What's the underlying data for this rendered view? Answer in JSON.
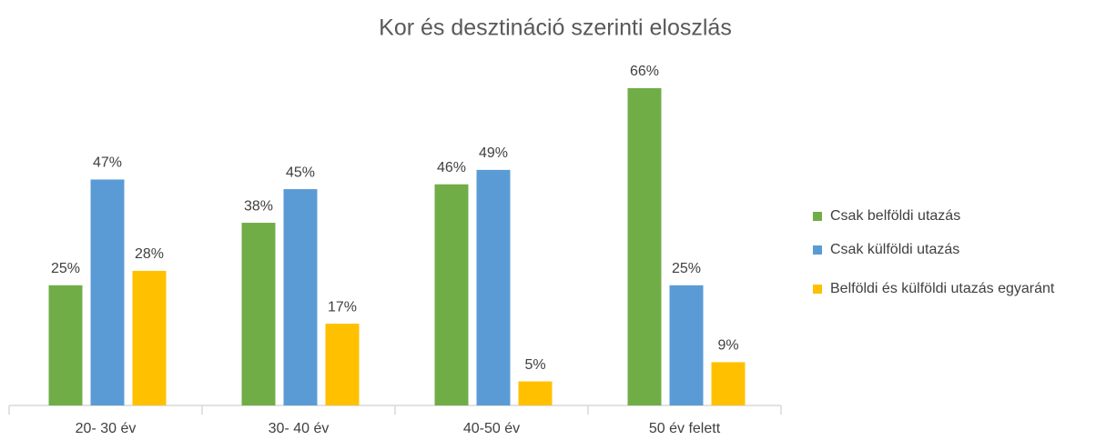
{
  "chart_data": {
    "type": "bar",
    "title": "Kor és desztináció szerinti eloszlás",
    "categories": [
      "20- 30 év",
      "30- 40 év",
      "40-50 év",
      "50 év felett"
    ],
    "series": [
      {
        "name": "Csak belföldi utazás",
        "color": "#70ad47",
        "values": [
          25,
          38,
          46,
          66
        ],
        "value_labels": [
          "25%",
          "38%",
          "46%",
          "66%"
        ]
      },
      {
        "name": "Csak külföldi utazás",
        "color": "#5b9bd5",
        "values": [
          47,
          45,
          49,
          25
        ],
        "value_labels": [
          "47%",
          "45%",
          "49%",
          "25%"
        ]
      },
      {
        "name": "Belföldi és külföldi utazás egyaránt",
        "color": "#ffc000",
        "values": [
          28,
          17,
          5,
          9
        ],
        "value_labels": [
          "28%",
          "17%",
          "5%",
          "9%"
        ]
      }
    ],
    "legend": "right"
  }
}
